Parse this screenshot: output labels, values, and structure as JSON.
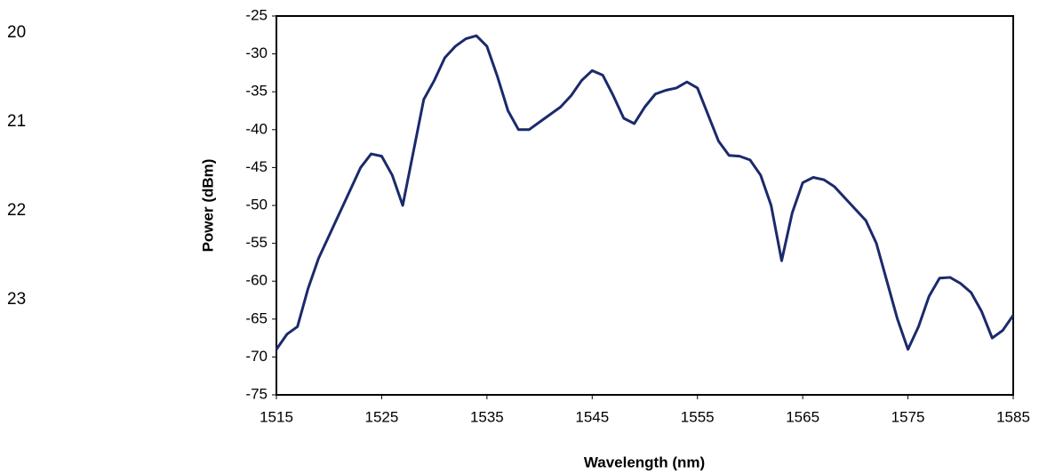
{
  "line_numbers": [
    "20",
    "21",
    "22",
    "23"
  ],
  "chart_data": {
    "type": "line",
    "x_label": "Wavelength (nm)",
    "y_label": "Power (dBm)",
    "xlim": [
      1515,
      1585
    ],
    "xticks": [
      1515,
      1525,
      1535,
      1545,
      1555,
      1565,
      1575,
      1585
    ],
    "ylim": [
      -75,
      -25
    ],
    "yticks": [
      -25,
      -30,
      -35,
      -40,
      -45,
      -50,
      -55,
      -60,
      -65,
      -70,
      -75
    ],
    "grid": false,
    "x": [
      1515,
      1516,
      1517,
      1518,
      1519,
      1520,
      1521,
      1522,
      1523,
      1524,
      1525,
      1526,
      1527,
      1528,
      1529,
      1530,
      1531,
      1532,
      1533,
      1534,
      1535,
      1536,
      1537,
      1538,
      1539,
      1540,
      1541,
      1542,
      1543,
      1544,
      1545,
      1546,
      1547,
      1548,
      1549,
      1550,
      1551,
      1552,
      1553,
      1554,
      1555,
      1556,
      1557,
      1558,
      1559,
      1560,
      1561,
      1562,
      1563,
      1564,
      1565,
      1566,
      1567,
      1568,
      1569,
      1570,
      1571,
      1572,
      1573,
      1574,
      1575,
      1576,
      1577,
      1578,
      1579,
      1580,
      1581,
      1582,
      1583,
      1584,
      1585
    ],
    "series": [
      {
        "color": "#1b2a6b",
        "values": [
          -69,
          -67,
          -66,
          -61,
          -57,
          -54,
          -51,
          -48,
          -45,
          -43.2,
          -43.5,
          -46,
          -50,
          -43,
          -36,
          -33.5,
          -30.5,
          -29,
          -28,
          -27.6,
          -29,
          -33,
          -37.5,
          -40,
          -40,
          -39,
          -38,
          -37,
          -35.5,
          -33.5,
          -32.2,
          -32.8,
          -35.5,
          -38.5,
          -39.2,
          -37,
          -35.3,
          -34.8,
          -34.5,
          -33.7,
          -34.5,
          -38,
          -41.5,
          -43.4,
          -43.5,
          -44,
          -46,
          -50,
          -57.3,
          -51,
          -47,
          -46.3,
          -46.6,
          -47.5,
          -49,
          -50.5,
          -52,
          -55,
          -60,
          -65,
          -69,
          -66,
          -62,
          -59.6,
          -59.5,
          -60.3,
          -61.5,
          -64,
          -67.5,
          -66.5,
          -64.5
        ]
      }
    ]
  }
}
